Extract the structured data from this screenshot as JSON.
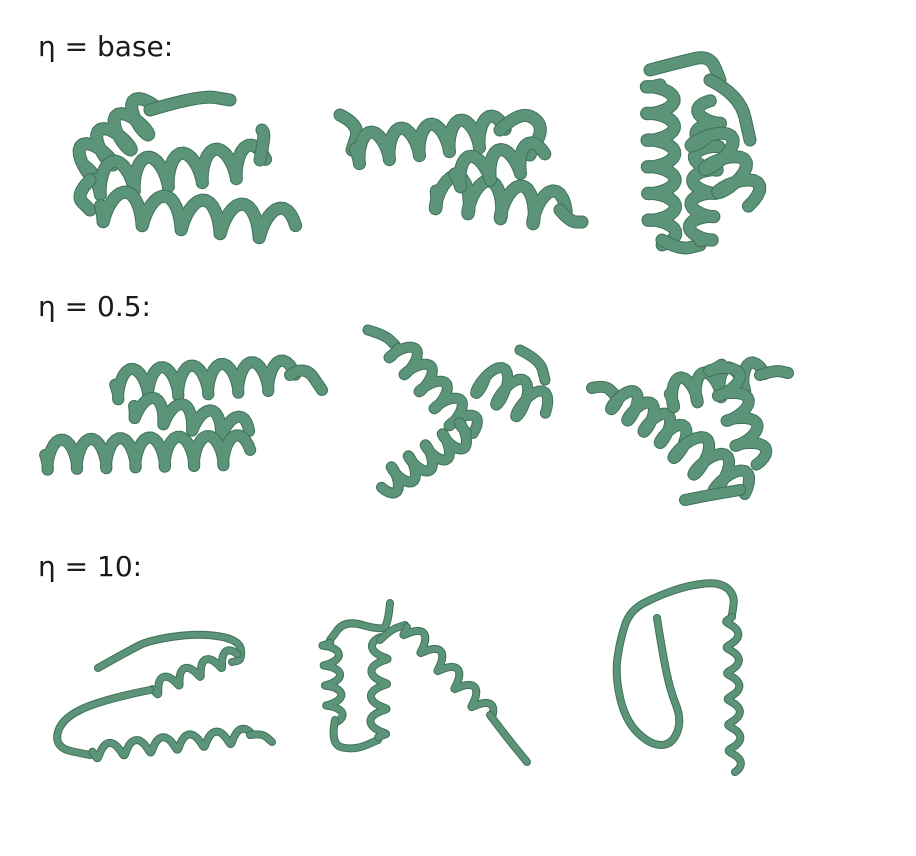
{
  "rows": [
    {
      "label": "η = base:",
      "style": "thick"
    },
    {
      "label": "η = 0.5:",
      "style": "thick"
    },
    {
      "label": "η = 10:",
      "style": "thin"
    }
  ],
  "colors": {
    "tube": "#5b9478",
    "tube_shadow": "#3f7259",
    "background": "#ffffff"
  }
}
